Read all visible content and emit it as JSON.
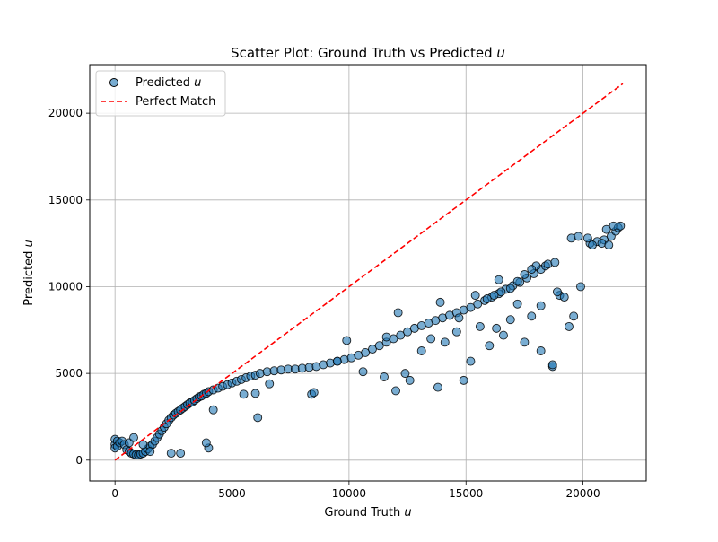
{
  "chart_data": {
    "type": "scatter",
    "title": "Scatter Plot: Ground Truth vs Predicted",
    "title_var": "u",
    "xlabel": "Ground Truth",
    "xlabel_var": "u",
    "ylabel": "Predicted",
    "ylabel_var": "u",
    "xlim": [
      -1080,
      22700
    ],
    "ylim": [
      -1200,
      22800
    ],
    "xticks": [
      0,
      5000,
      10000,
      15000,
      20000
    ],
    "yticks": [
      0,
      5000,
      10000,
      15000,
      20000
    ],
    "grid": true,
    "legend": {
      "placement": "top-left",
      "entries": [
        {
          "label": "Predicted",
          "label_var": "u",
          "marker": "circle"
        },
        {
          "label": "Perfect Match",
          "marker": "dashed-line"
        }
      ]
    },
    "colors": {
      "points": "#1f77b4",
      "points_edge": "#000000",
      "perfect_match": "#ff0000",
      "grid": "#b0b0b0"
    },
    "series": [
      {
        "name": "Predicted",
        "kind": "scatter",
        "points": [
          [
            0,
            1200
          ],
          [
            0,
            900
          ],
          [
            0,
            700
          ],
          [
            100,
            1100
          ],
          [
            100,
            800
          ],
          [
            200,
            1000
          ],
          [
            300,
            1100
          ],
          [
            400,
            900
          ],
          [
            500,
            600
          ],
          [
            600,
            500
          ],
          [
            700,
            400
          ],
          [
            800,
            350
          ],
          [
            900,
            300
          ],
          [
            1000,
            300
          ],
          [
            1100,
            350
          ],
          [
            1200,
            400
          ],
          [
            1300,
            500
          ],
          [
            1400,
            650
          ],
          [
            1500,
            800
          ],
          [
            1600,
            900
          ],
          [
            1700,
            1100
          ],
          [
            1800,
            1300
          ],
          [
            1900,
            1500
          ],
          [
            2000,
            1700
          ],
          [
            2100,
            1900
          ],
          [
            2200,
            2100
          ],
          [
            2300,
            2300
          ],
          [
            2400,
            2450
          ],
          [
            2500,
            2600
          ],
          [
            2600,
            2700
          ],
          [
            2700,
            2800
          ],
          [
            2800,
            2900
          ],
          [
            2900,
            3000
          ],
          [
            3000,
            3100
          ],
          [
            3100,
            3200
          ],
          [
            3200,
            3300
          ],
          [
            3300,
            3350
          ],
          [
            3400,
            3450
          ],
          [
            3500,
            3550
          ],
          [
            3600,
            3650
          ],
          [
            3700,
            3700
          ],
          [
            3800,
            3800
          ],
          [
            3900,
            3850
          ],
          [
            4000,
            3950
          ],
          [
            4200,
            4050
          ],
          [
            4400,
            4150
          ],
          [
            4600,
            4250
          ],
          [
            4800,
            4350
          ],
          [
            5000,
            4450
          ],
          [
            5200,
            4550
          ],
          [
            5400,
            4650
          ],
          [
            5600,
            4750
          ],
          [
            5800,
            4850
          ],
          [
            6000,
            4900
          ],
          [
            6200,
            5000
          ],
          [
            6500,
            5100
          ],
          [
            6800,
            5150
          ],
          [
            7100,
            5200
          ],
          [
            7400,
            5250
          ],
          [
            7700,
            5250
          ],
          [
            8000,
            5300
          ],
          [
            8300,
            5350
          ],
          [
            8600,
            5400
          ],
          [
            8900,
            5500
          ],
          [
            9200,
            5600
          ],
          [
            9500,
            5700
          ],
          [
            9800,
            5800
          ],
          [
            10100,
            5900
          ],
          [
            10400,
            6050
          ],
          [
            10700,
            6200
          ],
          [
            11000,
            6400
          ],
          [
            11300,
            6600
          ],
          [
            11600,
            6800
          ],
          [
            11900,
            7000
          ],
          [
            12200,
            7200
          ],
          [
            12500,
            7400
          ],
          [
            12800,
            7600
          ],
          [
            13100,
            7750
          ],
          [
            13400,
            7900
          ],
          [
            13700,
            8050
          ],
          [
            14000,
            8200
          ],
          [
            14300,
            8350
          ],
          [
            14600,
            8500
          ],
          [
            14900,
            8650
          ],
          [
            15200,
            8800
          ],
          [
            15500,
            9000
          ],
          [
            15800,
            9200
          ],
          [
            16100,
            9400
          ],
          [
            16400,
            9600
          ],
          [
            16700,
            9850
          ],
          [
            17000,
            10050
          ],
          [
            17300,
            10250
          ],
          [
            17600,
            10500
          ],
          [
            17900,
            10750
          ],
          [
            18200,
            11000
          ],
          [
            18400,
            11200
          ],
          [
            18500,
            11300
          ],
          [
            18000,
            11200
          ],
          [
            17800,
            11000
          ],
          [
            17500,
            10700
          ],
          [
            17200,
            10300
          ],
          [
            16900,
            9900
          ],
          [
            16500,
            9700
          ],
          [
            16200,
            9500
          ],
          [
            15900,
            9300
          ],
          [
            20300,
            12500
          ],
          [
            20600,
            12600
          ],
          [
            20900,
            12700
          ],
          [
            21200,
            12900
          ],
          [
            21400,
            13200
          ],
          [
            21500,
            13400
          ],
          [
            21600,
            13500
          ],
          [
            21300,
            13500
          ],
          [
            21000,
            13300
          ],
          [
            20800,
            12500
          ],
          [
            21100,
            12400
          ],
          [
            600,
            1000
          ],
          [
            800,
            1300
          ],
          [
            1200,
            900
          ],
          [
            1500,
            500
          ],
          [
            2400,
            400
          ],
          [
            2800,
            400
          ],
          [
            4000,
            700
          ],
          [
            3900,
            1000
          ],
          [
            4200,
            2900
          ],
          [
            6100,
            2450
          ],
          [
            5500,
            3800
          ],
          [
            6000,
            3850
          ],
          [
            6600,
            4400
          ],
          [
            8400,
            3800
          ],
          [
            8500,
            3900
          ],
          [
            9500,
            5700
          ],
          [
            9900,
            6900
          ],
          [
            10600,
            5100
          ],
          [
            11500,
            4800
          ],
          [
            12000,
            4000
          ],
          [
            12400,
            5000
          ],
          [
            12600,
            4600
          ],
          [
            13100,
            6300
          ],
          [
            13500,
            7000
          ],
          [
            13800,
            4200
          ],
          [
            14100,
            6800
          ],
          [
            14600,
            7400
          ],
          [
            14900,
            4600
          ],
          [
            15200,
            5700
          ],
          [
            15600,
            7700
          ],
          [
            16000,
            6600
          ],
          [
            16300,
            7600
          ],
          [
            16600,
            7200
          ],
          [
            16900,
            8100
          ],
          [
            17500,
            6800
          ],
          [
            17800,
            8300
          ],
          [
            18200,
            6300
          ],
          [
            18200,
            8900
          ],
          [
            18700,
            5400
          ],
          [
            18700,
            5500
          ],
          [
            19000,
            9500
          ],
          [
            19200,
            9400
          ],
          [
            19400,
            7700
          ],
          [
            19600,
            8300
          ],
          [
            18800,
            11400
          ],
          [
            19900,
            10000
          ],
          [
            19500,
            12800
          ],
          [
            19800,
            12900
          ],
          [
            20200,
            12800
          ],
          [
            20400,
            12400
          ],
          [
            12100,
            8500
          ],
          [
            13900,
            9100
          ],
          [
            15400,
            9500
          ],
          [
            16400,
            10400
          ],
          [
            14700,
            8200
          ],
          [
            17200,
            9000
          ],
          [
            18900,
            9700
          ],
          [
            11600,
            7100
          ]
        ]
      },
      {
        "name": "Perfect Match",
        "kind": "line",
        "x": [
          0,
          21700
        ],
        "y": [
          0,
          21700
        ]
      }
    ]
  }
}
